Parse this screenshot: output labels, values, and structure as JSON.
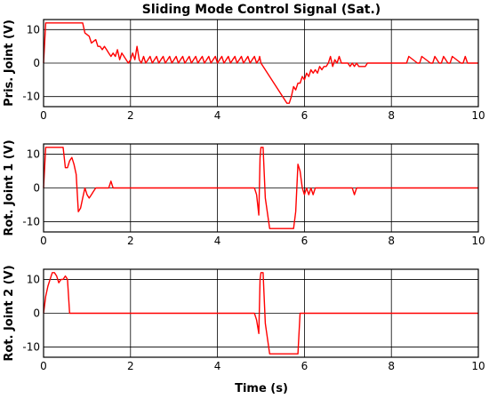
{
  "chart_data": {
    "type": "line",
    "title": "Sliding Mode Control Signal (Sat.)",
    "xlabel": "Time (s)",
    "xlim": [
      0,
      10
    ],
    "xticks": [
      0,
      2,
      4,
      6,
      8,
      10
    ],
    "grid": true,
    "line_color": "#ff0000",
    "subplots": [
      {
        "ylabel": "Pris. Joint (V)",
        "ylim": [
          -13,
          13
        ],
        "yticks": [
          10,
          0,
          -10
        ],
        "series": [
          {
            "x": [
              0,
              0.05,
              0.9,
              0.95,
              1.05,
              1.1,
              1.2,
              1.25,
              1.3,
              1.35,
              1.4,
              1.45,
              1.5,
              1.55,
              1.6,
              1.65,
              1.7,
              1.75,
              1.8,
              1.85,
              1.9,
              1.95,
              2.0,
              2.05,
              2.1,
              2.15,
              2.2,
              2.25,
              2.3,
              2.35,
              2.4,
              2.45,
              2.5,
              2.55,
              2.6,
              2.65,
              2.7,
              2.75,
              2.8,
              2.85,
              2.9,
              2.95,
              3.0,
              3.05,
              3.1,
              3.15,
              3.2,
              3.25,
              3.3,
              3.35,
              3.4,
              3.45,
              3.5,
              3.55,
              3.6,
              3.65,
              3.7,
              3.75,
              3.8,
              3.85,
              3.9,
              3.95,
              4.0,
              4.05,
              4.1,
              4.15,
              4.2,
              4.25,
              4.3,
              4.35,
              4.4,
              4.45,
              4.5,
              4.55,
              4.6,
              4.65,
              4.7,
              4.75,
              4.8,
              4.85,
              4.9,
              4.95,
              4.97,
              5.0,
              5.6,
              5.65,
              5.7,
              5.75,
              5.8,
              5.85,
              5.9,
              5.95,
              6.0,
              6.05,
              6.1,
              6.15,
              6.2,
              6.25,
              6.3,
              6.35,
              6.4,
              6.45,
              6.5,
              6.55,
              6.6,
              6.65,
              6.7,
              6.75,
              6.8,
              6.85,
              7.0,
              7.05,
              7.1,
              7.15,
              7.2,
              7.25,
              7.4,
              7.45,
              7.5,
              8.3,
              8.35,
              8.4,
              8.6,
              8.65,
              8.7,
              8.9,
              8.95,
              9.0,
              9.1,
              9.15,
              9.2,
              9.3,
              9.35,
              9.4,
              9.6,
              9.65,
              9.7,
              9.75,
              10.0
            ],
            "y": [
              0,
              12,
              12,
              9,
              8,
              6,
              7,
              5,
              5,
              4,
              5,
              4,
              3,
              2,
              3,
              2,
              4,
              1,
              3,
              2,
              1,
              0,
              1,
              3,
              1,
              5,
              1,
              0,
              2,
              0,
              1,
              2,
              0,
              1,
              2,
              0,
              1,
              2,
              0,
              1,
              2,
              0,
              1,
              2,
              0,
              1,
              2,
              0,
              1,
              2,
              0,
              1,
              2,
              0,
              1,
              2,
              0,
              1,
              2,
              0,
              1,
              2,
              0,
              1,
              2,
              0,
              1,
              2,
              0,
              1,
              2,
              0,
              1,
              2,
              0,
              1,
              2,
              0,
              1,
              2,
              0,
              1,
              2,
              0,
              -12,
              -12,
              -10,
              -7,
              -8,
              -6,
              -6,
              -4,
              -5,
              -3,
              -4,
              -2,
              -3,
              -2,
              -3,
              -1,
              -2,
              -1,
              -1,
              0,
              2,
              -1,
              1,
              0,
              2,
              0,
              0,
              -1,
              0,
              -1,
              0,
              -1,
              -1,
              0,
              0,
              0,
              0,
              2,
              0,
              0,
              2,
              0,
              0,
              2,
              0,
              0,
              2,
              0,
              0,
              2,
              0,
              0,
              2,
              0,
              0
            ]
          }
        ]
      },
      {
        "ylabel": "Rot. Joint 1 (V)",
        "ylim": [
          -13,
          13
        ],
        "yticks": [
          10,
          0,
          -10
        ],
        "series": [
          {
            "x": [
              0,
              0.05,
              0.45,
              0.5,
              0.55,
              0.6,
              0.65,
              0.7,
              0.75,
              0.8,
              0.85,
              0.9,
              0.95,
              1.0,
              1.05,
              1.1,
              1.15,
              1.2,
              1.25,
              1.3,
              1.35,
              1.4,
              1.45,
              1.5,
              1.55,
              1.6,
              1.65,
              4.85,
              4.9,
              4.95,
              4.98,
              5.0,
              5.05,
              5.1,
              5.2,
              5.3,
              5.7,
              5.75,
              5.8,
              5.85,
              5.9,
              5.95,
              6.0,
              6.05,
              6.1,
              6.15,
              6.2,
              6.25,
              6.3,
              6.35,
              6.4,
              7.05,
              7.1,
              7.15,
              7.2,
              10.0
            ],
            "y": [
              0,
              12,
              12,
              6,
              6,
              8,
              9,
              7,
              4,
              -7,
              -6,
              -3,
              0,
              -2,
              -3,
              -2,
              -1,
              0,
              0,
              0,
              0,
              0,
              0,
              0,
              2,
              0,
              0,
              0,
              -2,
              -8,
              9,
              12,
              12,
              -3,
              -12,
              -12,
              -12,
              -12,
              -7,
              7,
              5,
              0,
              -2,
              0,
              -2,
              0,
              -2,
              0,
              0,
              0,
              0,
              0,
              0,
              -2,
              0,
              0
            ]
          }
        ]
      },
      {
        "ylabel": "Rot. Joint 2 (V)",
        "ylim": [
          -13,
          13
        ],
        "yticks": [
          10,
          0,
          -10
        ],
        "series": [
          {
            "x": [
              0,
              0.05,
              0.1,
              0.15,
              0.2,
              0.25,
              0.3,
              0.35,
              0.4,
              0.45,
              0.5,
              0.55,
              0.6,
              4.85,
              4.9,
              4.95,
              4.98,
              5.0,
              5.05,
              5.1,
              5.2,
              5.3,
              5.8,
              5.85,
              5.9,
              10.0
            ],
            "y": [
              0,
              5,
              8,
              10,
              12,
              12,
              11,
              9,
              10,
              10,
              11,
              10,
              0,
              0,
              -2,
              -6,
              10,
              12,
              12,
              -3,
              -12,
              -12,
              -12,
              -12,
              0,
              0
            ]
          }
        ]
      }
    ]
  }
}
